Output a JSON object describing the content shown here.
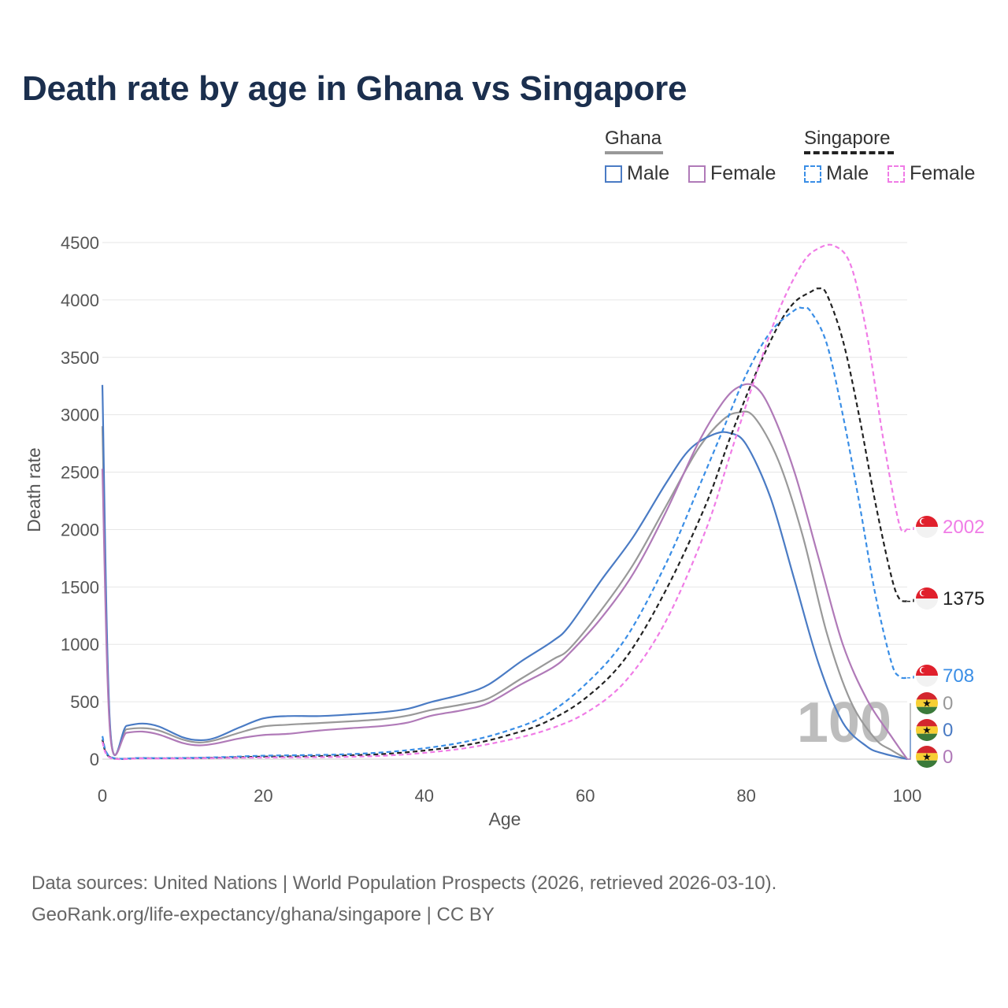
{
  "title": "Death rate by age in Ghana vs Singapore",
  "legend": {
    "groups": [
      {
        "name": "Ghana",
        "line_style": "solid",
        "line_color": "#999999",
        "items": [
          {
            "label": "Male",
            "color": "#4a7bc4",
            "style": "solid"
          },
          {
            "label": "Female",
            "color": "#b07ab8",
            "style": "solid"
          }
        ]
      },
      {
        "name": "Singapore",
        "line_style": "dashed",
        "line_color": "#222222",
        "items": [
          {
            "label": "Male",
            "color": "#3a8ee6",
            "style": "dashed"
          },
          {
            "label": "Female",
            "color": "#f07ce6",
            "style": "dashed"
          }
        ]
      }
    ]
  },
  "watermark": "100",
  "source_lines": [
    "Data sources: United Nations | World Population Prospects (2026, retrieved 2026-03-10).",
    "GeoRank.org/life-expectancy/ghana/singapore | CC BY"
  ],
  "chart_data": {
    "type": "line",
    "title": "Death rate by age in Ghana vs Singapore",
    "xlabel": "Age",
    "ylabel": "Death rate",
    "xlim": [
      0,
      100
    ],
    "ylim": [
      0,
      4500
    ],
    "xticks": [
      0,
      20,
      40,
      60,
      80,
      100
    ],
    "yticks": [
      0,
      500,
      1000,
      1500,
      2000,
      2500,
      3000,
      3500,
      4000,
      4500
    ],
    "grid": true,
    "series": [
      {
        "name": "Ghana Total",
        "country": "Ghana",
        "sex": "Total",
        "color": "#999999",
        "dashed": false,
        "end_value": "0",
        "flag": "ghana",
        "x": [
          0,
          1,
          3,
          5,
          7,
          10,
          12,
          14,
          17,
          20,
          23,
          27,
          31,
          35,
          38,
          41,
          45,
          48,
          52,
          56,
          58,
          62,
          66,
          70,
          74,
          77,
          79,
          81,
          84,
          87,
          90,
          93,
          96,
          98,
          100
        ],
        "y": [
          2900,
          225,
          260,
          270,
          250,
          170,
          145,
          165,
          230,
          285,
          300,
          315,
          330,
          350,
          380,
          430,
          480,
          530,
          700,
          870,
          960,
          1300,
          1700,
          2200,
          2700,
          2950,
          3020,
          2980,
          2600,
          1950,
          1100,
          500,
          180,
          80,
          0
        ]
      },
      {
        "name": "Ghana Male",
        "country": "Ghana",
        "sex": "Male",
        "color": "#4a7bc4",
        "dashed": false,
        "end_value": "0",
        "flag": "ghana",
        "x": [
          0,
          1,
          3,
          5,
          7,
          10,
          12,
          14,
          17,
          20,
          23,
          27,
          31,
          35,
          38,
          41,
          45,
          48,
          52,
          56,
          58,
          62,
          66,
          70,
          73,
          76,
          78,
          80,
          83,
          86,
          89,
          92,
          95,
          97,
          100
        ],
        "y": [
          3260,
          245,
          290,
          310,
          285,
          190,
          165,
          185,
          275,
          355,
          375,
          375,
          390,
          410,
          440,
          500,
          570,
          650,
          850,
          1030,
          1160,
          1560,
          1940,
          2400,
          2700,
          2830,
          2840,
          2740,
          2280,
          1560,
          830,
          320,
          110,
          50,
          0
        ]
      },
      {
        "name": "Ghana Female",
        "country": "Ghana",
        "sex": "Female",
        "color": "#b07ab8",
        "dashed": false,
        "end_value": "0",
        "flag": "ghana",
        "x": [
          0,
          1,
          3,
          5,
          7,
          10,
          12,
          14,
          17,
          20,
          23,
          27,
          31,
          35,
          38,
          41,
          45,
          48,
          52,
          56,
          58,
          62,
          66,
          70,
          74,
          77,
          79,
          81,
          83,
          86,
          89,
          92,
          95,
          98,
          100
        ],
        "y": [
          2530,
          200,
          230,
          240,
          215,
          140,
          120,
          135,
          180,
          210,
          220,
          250,
          270,
          290,
          320,
          380,
          430,
          490,
          650,
          800,
          920,
          1230,
          1620,
          2150,
          2750,
          3100,
          3240,
          3250,
          3050,
          2500,
          1750,
          1000,
          520,
          200,
          0
        ]
      },
      {
        "name": "Singapore Total",
        "country": "Singapore",
        "sex": "Total",
        "color": "#222222",
        "dashed": true,
        "end_value": "1375",
        "flag": "singapore",
        "x": [
          0,
          1,
          5,
          10,
          15,
          20,
          25,
          30,
          35,
          40,
          45,
          50,
          55,
          60,
          65,
          70,
          75,
          78,
          81,
          84,
          86,
          88,
          89,
          90,
          92,
          94,
          96,
          98,
          99,
          100
        ],
        "y": [
          170,
          15,
          8,
          8,
          14,
          22,
          25,
          32,
          45,
          75,
          120,
          200,
          320,
          530,
          880,
          1470,
          2220,
          2800,
          3330,
          3780,
          3980,
          4070,
          4100,
          4050,
          3650,
          3000,
          2250,
          1600,
          1400,
          1375
        ]
      },
      {
        "name": "Singapore Male",
        "country": "Singapore",
        "sex": "Male",
        "color": "#3a8ee6",
        "dashed": true,
        "end_value": "708",
        "flag": "singapore",
        "x": [
          0,
          1,
          5,
          10,
          15,
          20,
          25,
          30,
          35,
          40,
          45,
          50,
          55,
          60,
          65,
          70,
          74,
          77,
          80,
          83,
          86,
          87,
          88,
          90,
          92,
          94,
          96,
          98,
          99,
          100
        ],
        "y": [
          200,
          20,
          10,
          10,
          18,
          30,
          35,
          42,
          60,
          95,
          150,
          240,
          380,
          650,
          1050,
          1700,
          2350,
          2850,
          3350,
          3720,
          3910,
          3930,
          3900,
          3620,
          3000,
          2250,
          1450,
          850,
          720,
          708
        ]
      },
      {
        "name": "Singapore Female",
        "country": "Singapore",
        "sex": "Female",
        "color": "#f07ce6",
        "dashed": true,
        "end_value": "2002",
        "flag": "singapore",
        "x": [
          0,
          1,
          5,
          10,
          15,
          20,
          25,
          30,
          35,
          40,
          45,
          50,
          55,
          60,
          65,
          70,
          75,
          78,
          81,
          84,
          87,
          89,
          91,
          93,
          95,
          97,
          99,
          100
        ],
        "y": [
          150,
          12,
          6,
          6,
          10,
          14,
          16,
          20,
          30,
          55,
          95,
          160,
          250,
          400,
          680,
          1200,
          2000,
          2650,
          3300,
          3900,
          4320,
          4450,
          4470,
          4300,
          3700,
          2800,
          2050,
          2002
        ]
      }
    ]
  }
}
